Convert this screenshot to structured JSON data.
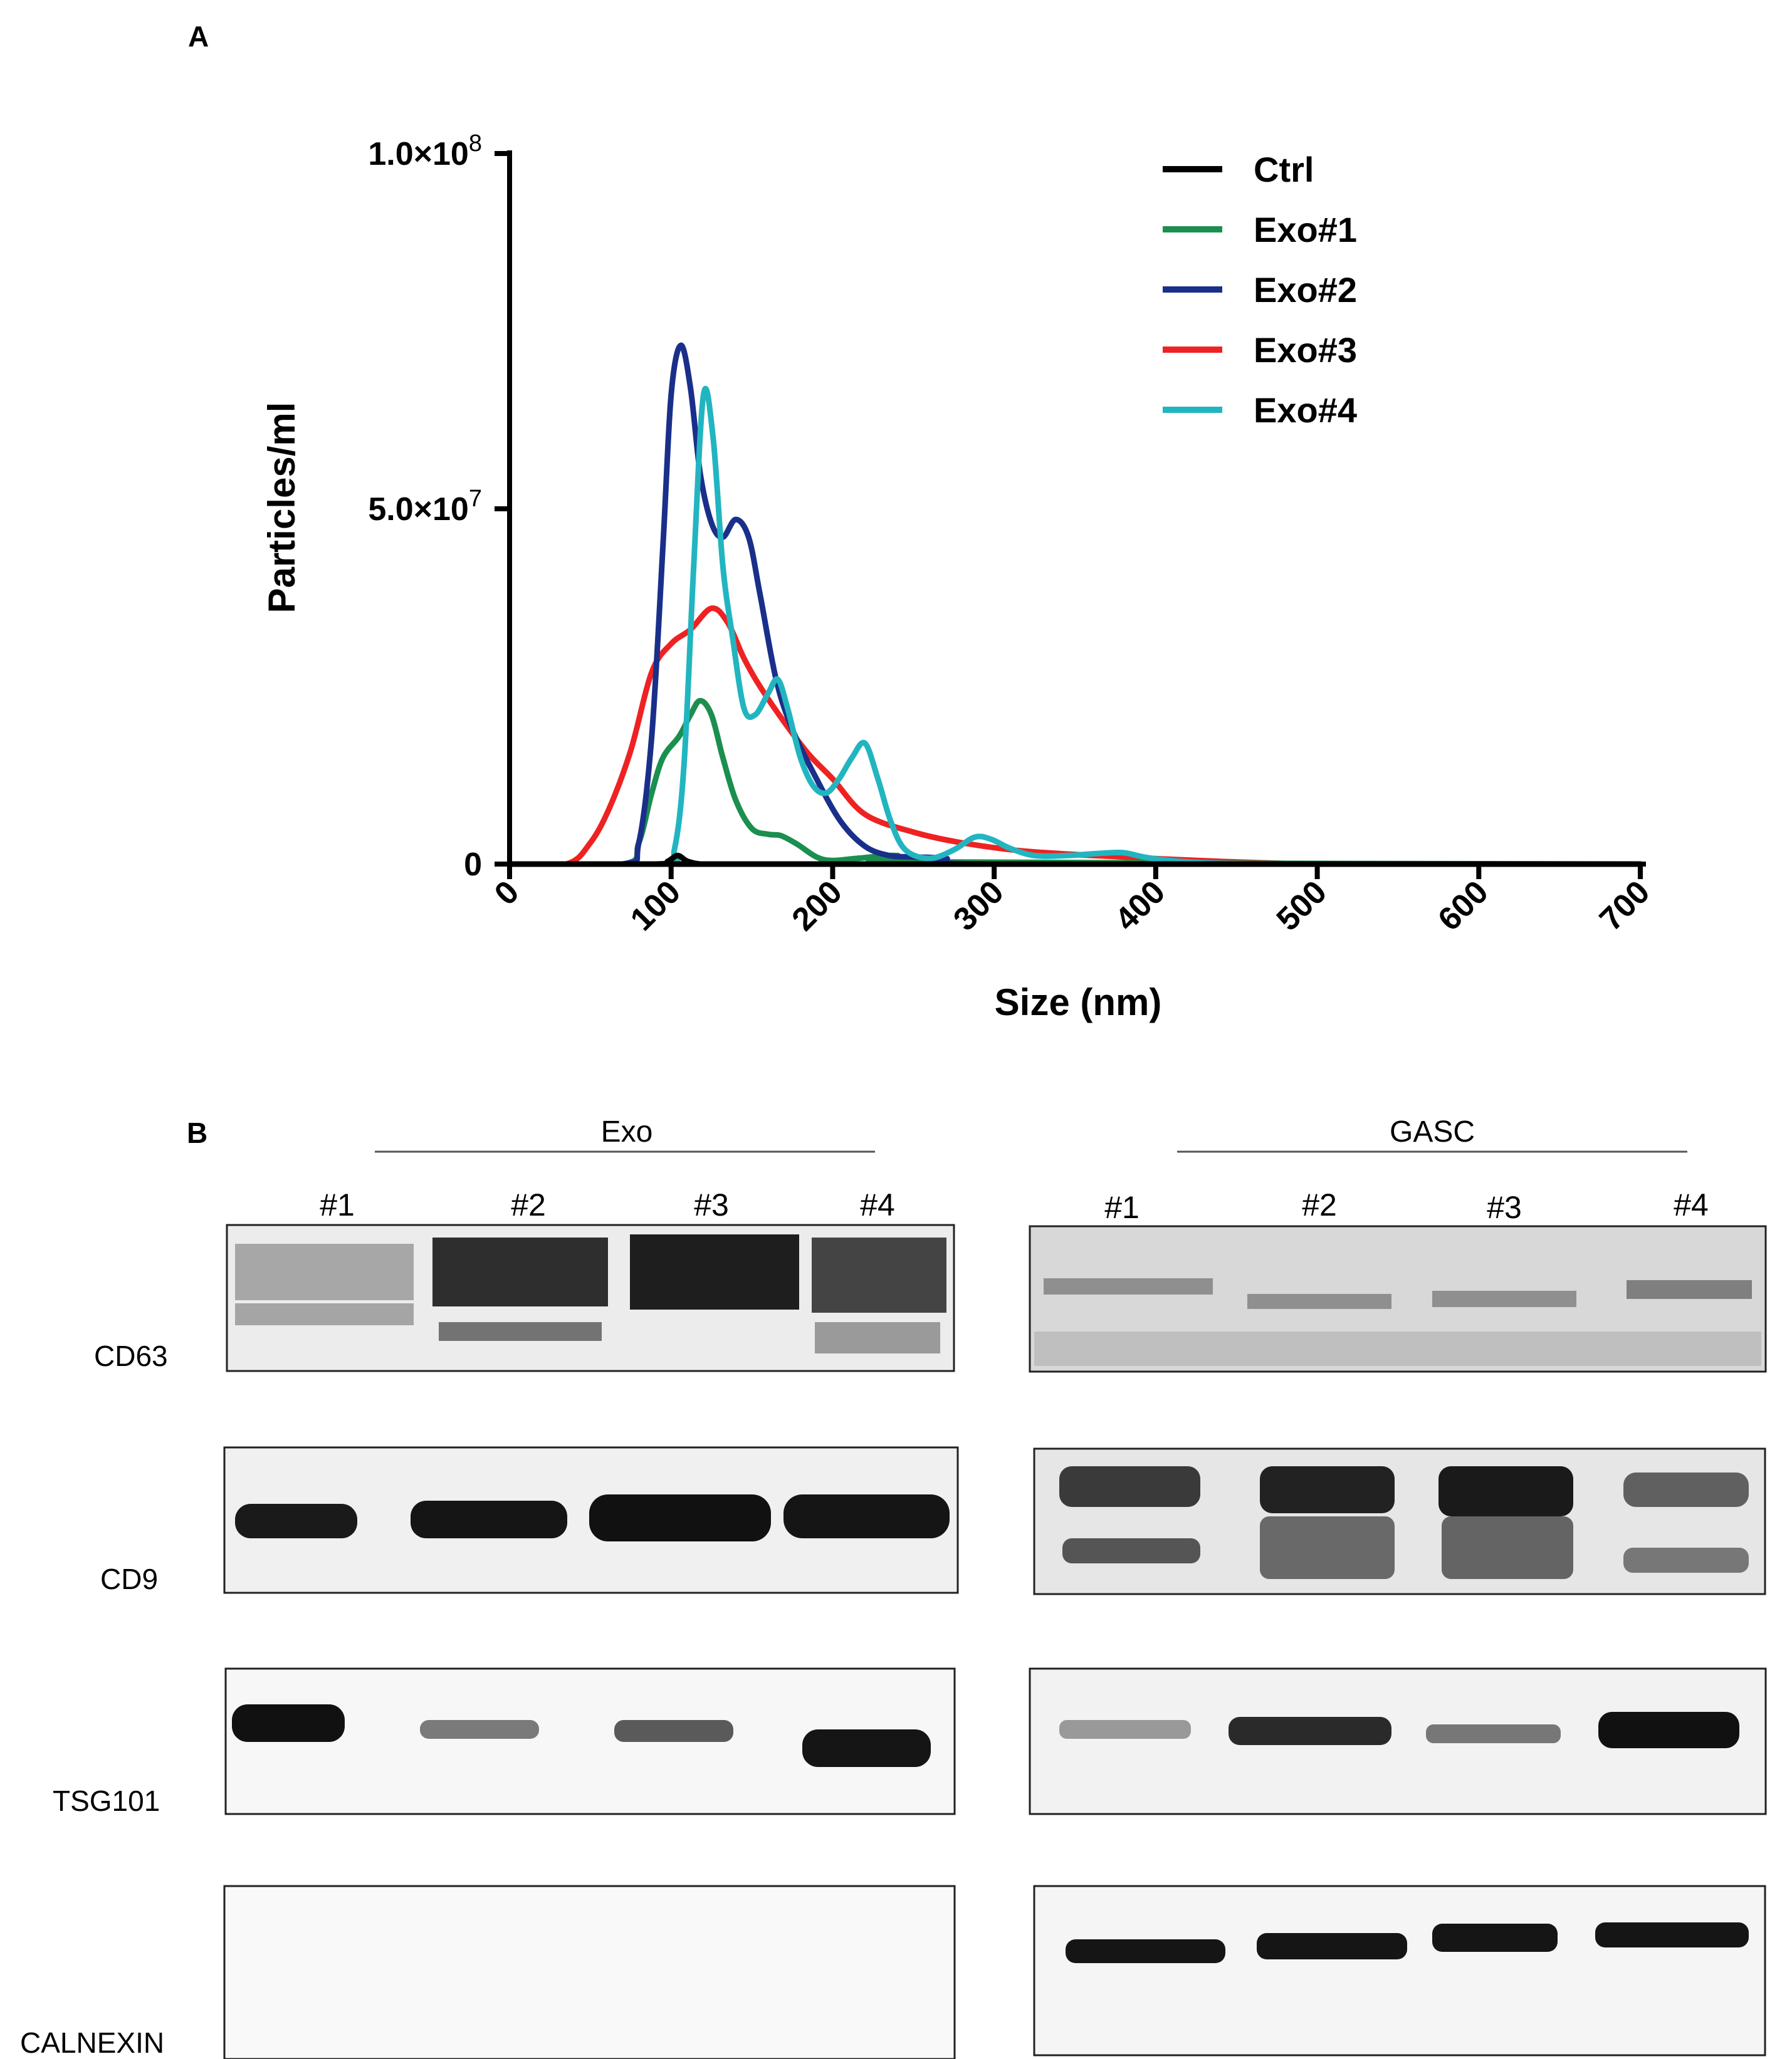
{
  "panel_a_label": "A",
  "panel_b_label": "B",
  "chart_data": {
    "type": "line",
    "title": "",
    "xlabel": "Size (nm)",
    "ylabel": "Particles/ml",
    "xlim": [
      0,
      700
    ],
    "ylim": [
      0,
      100000000
    ],
    "xticks": [
      "0",
      "100",
      "200",
      "300",
      "400",
      "500",
      "600",
      "700"
    ],
    "yticks": [
      {
        "value": 0,
        "label": "0",
        "exp": ""
      },
      {
        "value": 50000000,
        "label": "5.0×10",
        "exp": "7"
      },
      {
        "value": 100000000,
        "label": "1.0×10",
        "exp": "8"
      }
    ],
    "legend_position": "top-right",
    "series": [
      {
        "name": "Ctrl",
        "color": "#000000",
        "x": [
          0,
          90,
          98,
          104,
          110,
          118,
          130,
          700
        ],
        "y": [
          0,
          0,
          400000,
          1200000,
          400000,
          0,
          0,
          0
        ]
      },
      {
        "name": "Exo#1",
        "color": "#1a8f4f",
        "x": [
          0,
          70,
          80,
          88,
          95,
          105,
          112,
          118,
          125,
          132,
          140,
          150,
          160,
          168,
          178,
          190,
          200,
          215,
          240,
          260,
          700
        ],
        "y": [
          0,
          0,
          3000000,
          10000000,
          15000000,
          18000000,
          21000000,
          23000000,
          21000000,
          15000000,
          9000000,
          5000000,
          4200000,
          4000000,
          2800000,
          1000000,
          500000,
          800000,
          1200000,
          300000,
          0
        ]
      },
      {
        "name": "Exo#2",
        "color": "#1a2f8a",
        "x": [
          0,
          70,
          80,
          88,
          95,
          100,
          106,
          112,
          118,
          125,
          132,
          140,
          148,
          155,
          165,
          175,
          190,
          205,
          220,
          235,
          250,
          270,
          300,
          700
        ],
        "y": [
          0,
          0,
          3000000,
          18000000,
          45000000,
          66000000,
          73000000,
          67000000,
          55000000,
          48000000,
          46000000,
          48500000,
          46000000,
          38000000,
          26000000,
          19000000,
          12000000,
          6000000,
          2500000,
          1200000,
          1000000,
          800000,
          0,
          0
        ]
      },
      {
        "name": "Exo#3",
        "color": "#ee2222",
        "x": [
          0,
          35,
          50,
          62,
          75,
          88,
          100,
          112,
          125,
          135,
          145,
          155,
          170,
          185,
          200,
          220,
          250,
          280,
          320,
          380,
          450,
          520,
          700
        ],
        "y": [
          0,
          0,
          3000000,
          8000000,
          16000000,
          27000000,
          31000000,
          33000000,
          36000000,
          34000000,
          29000000,
          25000000,
          20000000,
          15500000,
          12000000,
          7000000,
          4500000,
          3000000,
          1800000,
          1000000,
          300000,
          0,
          0
        ]
      },
      {
        "name": "Exo#4",
        "color": "#22b5c0",
        "x": [
          0,
          95,
          102,
          108,
          114,
          120,
          126,
          132,
          138,
          145,
          152,
          160,
          166,
          172,
          180,
          188,
          196,
          204,
          212,
          220,
          228,
          236,
          245,
          260,
          275,
          288,
          298,
          310,
          325,
          345,
          365,
          380,
          395,
          420,
          460,
          520,
          660
        ],
        "y": [
          0,
          0,
          2000000,
          14000000,
          42000000,
          66000000,
          60000000,
          42000000,
          32000000,
          22000000,
          21000000,
          24000000,
          26000000,
          22000000,
          15000000,
          11000000,
          10000000,
          12000000,
          15000000,
          17000000,
          12000000,
          6000000,
          2000000,
          800000,
          2000000,
          3800000,
          3500000,
          2200000,
          1200000,
          1200000,
          1500000,
          1600000,
          900000,
          300000,
          0,
          0,
          0
        ]
      }
    ]
  },
  "blot": {
    "exo_group_label": "Exo",
    "gasc_group_label": "GASC",
    "exo_lanes": [
      "#1",
      "#2",
      "#3",
      "#4"
    ],
    "gasc_lanes": [
      "#1",
      "#2",
      "#3",
      "#4"
    ],
    "proteins": [
      "CD63",
      "CD9",
      "TSG101",
      "CALNEXIN"
    ]
  }
}
